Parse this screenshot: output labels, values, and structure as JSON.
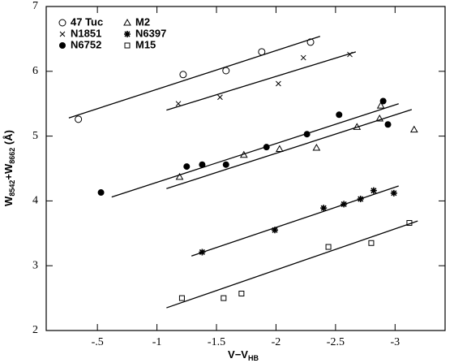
{
  "chart_data": {
    "type": "scatter",
    "xlabel": [
      "V−V",
      "HB"
    ],
    "ylabel": [
      "W",
      "8542",
      "+W",
      "8662",
      " (Å)"
    ],
    "xlim": [
      -0.07,
      -3.42
    ],
    "ylim": [
      2,
      7
    ],
    "xticks": [
      {
        "value": -0.5,
        "label": "-.5"
      },
      -1,
      -1.5,
      -2,
      -2.5,
      -3
    ],
    "yticks": [
      2,
      3,
      4,
      5,
      6,
      7
    ],
    "legend": "upper left",
    "series": [
      {
        "name": "47 Tuc",
        "marker": "open-circle",
        "color": "#000000",
        "x": [
          -0.34,
          -1.22,
          -1.58,
          -1.88,
          -2.29
        ],
        "y": [
          5.26,
          5.95,
          6.01,
          6.3,
          6.45
        ],
        "fit_x": [
          -0.26,
          -2.37
        ],
        "fit_y": [
          5.28,
          6.54
        ]
      },
      {
        "name": "N1851",
        "marker": "cross",
        "color": "#000000",
        "x": [
          -1.18,
          -1.53,
          -2.02,
          -2.23,
          -2.62
        ],
        "y": [
          5.5,
          5.6,
          5.81,
          6.21,
          6.26
        ],
        "fit_x": [
          -1.08,
          -2.67
        ],
        "fit_y": [
          5.4,
          6.3
        ]
      },
      {
        "name": "N6752",
        "marker": "filled-circle",
        "color": "#000000",
        "x": [
          -0.53,
          -1.25,
          -1.38,
          -1.58,
          -1.92,
          -2.26,
          -2.53,
          -2.9,
          -2.94
        ],
        "y": [
          4.13,
          4.53,
          4.56,
          4.56,
          4.83,
          5.03,
          5.33,
          5.54,
          5.18
        ],
        "fit_x": [
          -0.62,
          -3.03
        ],
        "fit_y": [
          4.06,
          5.5
        ]
      },
      {
        "name": "M2",
        "marker": "triangle",
        "color": "#000000",
        "x": [
          -1.19,
          -1.73,
          -2.03,
          -2.34,
          -2.68,
          -2.87,
          -2.88,
          -3.16
        ],
        "y": [
          4.37,
          4.71,
          4.8,
          4.82,
          5.14,
          5.27,
          5.47,
          5.1
        ],
        "fit_x": [
          -1.08,
          -3.14
        ],
        "fit_y": [
          4.19,
          5.41
        ]
      },
      {
        "name": "N6397",
        "marker": "asterisk",
        "color": "#000000",
        "x": [
          -1.38,
          -1.99,
          -2.4,
          -2.57,
          -2.71,
          -2.82,
          -2.99
        ],
        "y": [
          3.21,
          3.55,
          3.89,
          3.95,
          4.03,
          4.16,
          4.12
        ],
        "fit_x": [
          -1.29,
          -3.03
        ],
        "fit_y": [
          3.15,
          4.23
        ]
      },
      {
        "name": "M15",
        "marker": "square",
        "color": "#000000",
        "x": [
          -1.21,
          -1.56,
          -1.71,
          -2.44,
          -2.8,
          -3.12
        ],
        "y": [
          2.5,
          2.5,
          2.57,
          3.29,
          3.35,
          3.66
        ],
        "fit_x": [
          -1.08,
          -3.19
        ],
        "fit_y": [
          2.35,
          3.69
        ]
      }
    ]
  }
}
